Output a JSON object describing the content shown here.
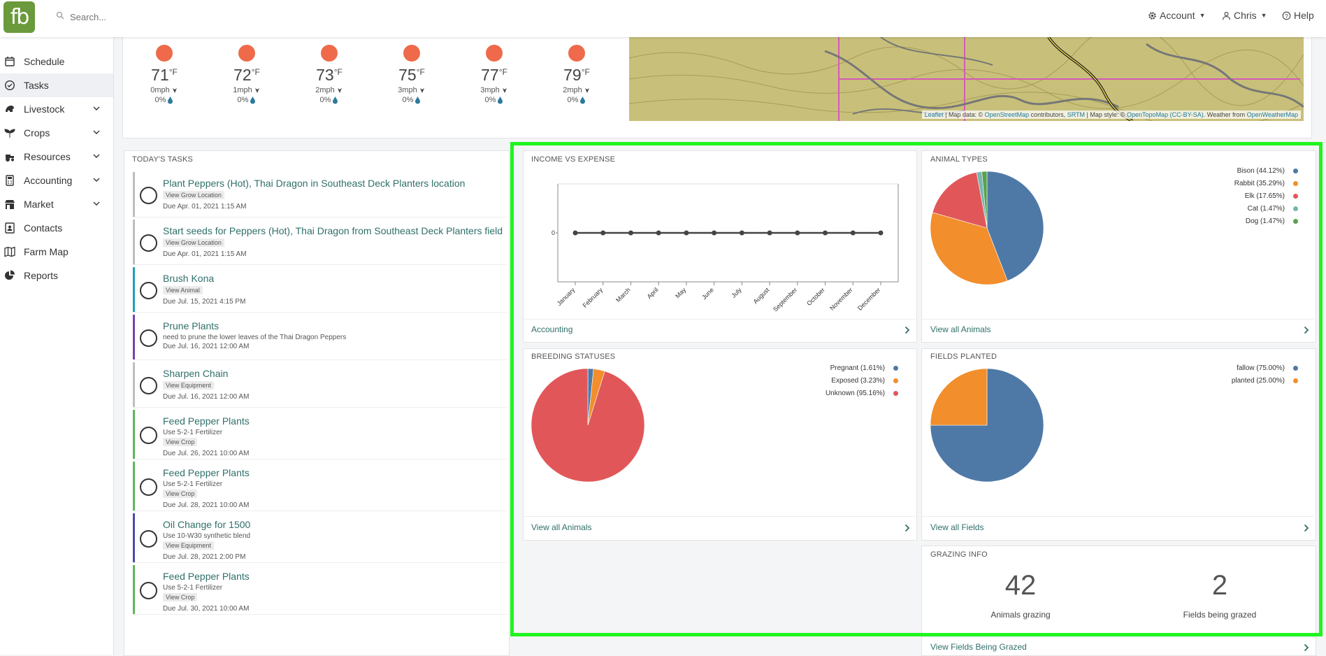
{
  "app": {
    "logo_text": "fb"
  },
  "search": {
    "placeholder": "Search..."
  },
  "topnav": {
    "account": "Account",
    "user": "Chris",
    "help": "Help"
  },
  "sidebar": {
    "items": [
      {
        "label": "Schedule",
        "icon": "calendar-icon",
        "expandable": false,
        "active": false
      },
      {
        "label": "Tasks",
        "icon": "check-circle-icon",
        "expandable": false,
        "active": true
      },
      {
        "label": "Livestock",
        "icon": "livestock-icon",
        "expandable": true,
        "active": false
      },
      {
        "label": "Crops",
        "icon": "seedling-icon",
        "expandable": true,
        "active": false
      },
      {
        "label": "Resources",
        "icon": "tractor-icon",
        "expandable": true,
        "active": false
      },
      {
        "label": "Accounting",
        "icon": "calculator-icon",
        "expandable": true,
        "active": false
      },
      {
        "label": "Market",
        "icon": "store-icon",
        "expandable": true,
        "active": false
      },
      {
        "label": "Contacts",
        "icon": "contact-icon",
        "expandable": false,
        "active": false
      },
      {
        "label": "Farm Map",
        "icon": "map-icon",
        "expandable": false,
        "active": false
      },
      {
        "label": "Reports",
        "icon": "pie-chart-icon",
        "expandable": false,
        "active": false
      }
    ]
  },
  "weather": [
    {
      "temp": "71",
      "unit": "°F",
      "wind": "0mph",
      "precip": "0%"
    },
    {
      "temp": "72",
      "unit": "°F",
      "wind": "1mph",
      "precip": "0%"
    },
    {
      "temp": "73",
      "unit": "°F",
      "wind": "2mph",
      "precip": "0%"
    },
    {
      "temp": "75",
      "unit": "°F",
      "wind": "3mph",
      "precip": "0%"
    },
    {
      "temp": "77",
      "unit": "°F",
      "wind": "3mph",
      "precip": "0%"
    },
    {
      "temp": "79",
      "unit": "°F",
      "wind": "2mph",
      "precip": "0%"
    }
  ],
  "map": {
    "attribution": {
      "leaflet": "Leaflet",
      "t1": " | Map data: © ",
      "osm": "OpenStreetMap",
      "t2": " contributors, ",
      "srtm": "SRTM",
      "t3": " | Map style: © ",
      "otm": "OpenTopoMap (CC-BY-SA)",
      "t4": ". Weather from ",
      "owm": "OpenWeatherMap"
    }
  },
  "tasks": {
    "header": "TODAY'S TASKS",
    "items": [
      {
        "title": "Plant Peppers (Hot), Thai Dragon in Southeast Deck Planters location",
        "note": "",
        "tag": "View Grow Location",
        "due": "Due Apr. 01, 2021 1:15 AM",
        "color": "#bdbdbd"
      },
      {
        "title": "Start seeds for Peppers (Hot), Thai Dragon from Southeast Deck Planters field",
        "note": "",
        "tag": "View Grow Location",
        "due": "Due Apr. 01, 2021 1:15 AM",
        "color": "#bdbdbd"
      },
      {
        "title": "Brush Kona",
        "note": "",
        "tag": "View Animal",
        "due": "Due Jul. 15, 2021 4:15 PM",
        "color": "#1fa0b8"
      },
      {
        "title": "Prune Plants",
        "note": "need to prune the lower leaves of the Thai Dragon Peppers",
        "tag": "",
        "due": "Due Jul. 16, 2021 12:00 AM",
        "color": "#7a3fb0"
      },
      {
        "title": "Sharpen Chain",
        "note": "",
        "tag": "View Equipment",
        "due": "Due Jul. 16, 2021 12:00 AM",
        "color": "#bdbdbd"
      },
      {
        "title": "Feed Pepper Plants",
        "note": "Use 5-2-1 Fertilizer",
        "tag": "View Crop",
        "due": "Due Jul. 26, 2021 10:00 AM",
        "color": "#5cb85c"
      },
      {
        "title": "Feed Pepper Plants",
        "note": "Use 5-2-1 Fertilizer",
        "tag": "View Crop",
        "due": "Due Jul. 28, 2021 10:00 AM",
        "color": "#5cb85c"
      },
      {
        "title": "Oil Change for 1500",
        "note": "Use 10-W30 synthetic blend",
        "tag": "View Equipment",
        "due": "Due Jul. 28, 2021 2:00 PM",
        "color": "#4a4ab0"
      },
      {
        "title": "Feed Pepper Plants",
        "note": "Use 5-2-1 Fertilizer",
        "tag": "View Crop",
        "due": "Due Jul. 30, 2021 10:00 AM",
        "color": "#5cb85c"
      }
    ]
  },
  "income": {
    "header": "INCOME VS EXPENSE",
    "link": "Accounting"
  },
  "animal_types": {
    "header": "ANIMAL TYPES",
    "link": "View all Animals"
  },
  "breeding": {
    "header": "BREEDING STATUSES",
    "link": "View all Animals"
  },
  "fields": {
    "header": "FIELDS PLANTED",
    "link": "View all Fields"
  },
  "grazing": {
    "header": "GRAZING INFO",
    "animals_value": "42",
    "animals_label": "Animals grazing",
    "fields_value": "2",
    "fields_label": "Fields being grazed",
    "link": "View Fields Being Grazed"
  },
  "chart_data": [
    {
      "type": "line",
      "title": "INCOME VS EXPENSE",
      "x": [
        "January",
        "February",
        "March",
        "April",
        "May",
        "June",
        "July",
        "August",
        "September",
        "October",
        "November",
        "December"
      ],
      "series": [
        {
          "values": [
            0,
            0,
            0,
            0,
            0,
            0,
            0,
            0,
            0,
            0,
            0,
            0
          ]
        }
      ],
      "y_tick_labels": [
        "0"
      ],
      "grid": false
    },
    {
      "type": "pie",
      "title": "ANIMAL TYPES",
      "labels": [
        "Bison (44.12%)",
        "Rabbit (35.29%)",
        "Elk (17.65%)",
        "Cat (1.47%)",
        "Dog (1.47%)"
      ],
      "values": [
        44.12,
        35.29,
        17.65,
        1.47,
        1.47
      ],
      "colors": [
        "#4e79a7",
        "#f28e2b",
        "#e15759",
        "#76b7b2",
        "#59a14f"
      ],
      "legend": "top-right"
    },
    {
      "type": "pie",
      "title": "BREEDING STATUSES",
      "labels": [
        "Pregnant (1.61%)",
        "Exposed (3.23%)",
        "Unknown (95.16%)"
      ],
      "values": [
        1.61,
        3.23,
        95.16
      ],
      "colors": [
        "#4e79a7",
        "#f28e2b",
        "#e15759"
      ],
      "legend": "top-right"
    },
    {
      "type": "pie",
      "title": "FIELDS PLANTED",
      "labels": [
        "fallow (75.00%)",
        "planted (25.00%)"
      ],
      "values": [
        75,
        25
      ],
      "colors": [
        "#4e79a7",
        "#f28e2b"
      ],
      "legend": "top-right"
    }
  ]
}
